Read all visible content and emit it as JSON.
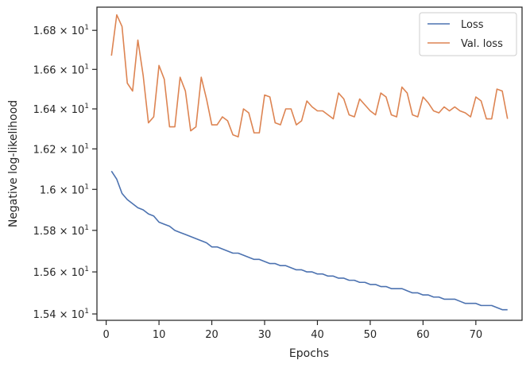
{
  "chart_data": {
    "type": "line",
    "xlabel": "Epochs",
    "ylabel": "Negative log-likelihood",
    "xlim": [
      -1.75,
      78.75
    ],
    "ylim": [
      15.37,
      16.92
    ],
    "y_scale": "log",
    "grid": false,
    "legend_position": "top-right",
    "x_ticks": [
      0,
      10,
      20,
      30,
      40,
      50,
      60,
      70
    ],
    "x_tick_labels": [
      "0",
      "10",
      "20",
      "30",
      "40",
      "50",
      "60",
      "70"
    ],
    "y_ticks": [
      15.4,
      15.6,
      15.8,
      16.0,
      16.2,
      16.4,
      16.6,
      16.8
    ],
    "y_tick_labels": [
      {
        "mant": "1.54",
        "exp": "1"
      },
      {
        "mant": "1.56",
        "exp": "1"
      },
      {
        "mant": "1.58",
        "exp": "1"
      },
      {
        "mant": "1.6",
        "exp": "1"
      },
      {
        "mant": "1.62",
        "exp": "1"
      },
      {
        "mant": "1.64",
        "exp": "1"
      },
      {
        "mant": "1.66",
        "exp": "1"
      },
      {
        "mant": "1.68",
        "exp": "1"
      }
    ],
    "x": [
      1,
      2,
      3,
      4,
      5,
      6,
      7,
      8,
      9,
      10,
      11,
      12,
      13,
      14,
      15,
      16,
      17,
      18,
      19,
      20,
      21,
      22,
      23,
      24,
      25,
      26,
      27,
      28,
      29,
      30,
      31,
      32,
      33,
      34,
      35,
      36,
      37,
      38,
      39,
      40,
      41,
      42,
      43,
      44,
      45,
      46,
      47,
      48,
      49,
      50,
      51,
      52,
      53,
      54,
      55,
      56,
      57,
      58,
      59,
      60,
      61,
      62,
      63,
      64,
      65,
      66,
      67,
      68,
      69,
      70,
      71,
      72,
      73,
      74,
      75,
      76
    ],
    "series": [
      {
        "name": "Loss",
        "color": "#4c72b0",
        "values": [
          16.09,
          16.05,
          15.98,
          15.95,
          15.93,
          15.91,
          15.9,
          15.88,
          15.87,
          15.84,
          15.83,
          15.82,
          15.8,
          15.79,
          15.78,
          15.77,
          15.76,
          15.75,
          15.74,
          15.72,
          15.72,
          15.71,
          15.7,
          15.69,
          15.69,
          15.68,
          15.67,
          15.66,
          15.66,
          15.65,
          15.64,
          15.64,
          15.63,
          15.63,
          15.62,
          15.61,
          15.61,
          15.6,
          15.6,
          15.59,
          15.59,
          15.58,
          15.58,
          15.57,
          15.57,
          15.56,
          15.56,
          15.55,
          15.55,
          15.54,
          15.54,
          15.53,
          15.53,
          15.52,
          15.52,
          15.52,
          15.51,
          15.5,
          15.5,
          15.49,
          15.49,
          15.48,
          15.48,
          15.47,
          15.47,
          15.47,
          15.46,
          15.45,
          15.45,
          15.45,
          15.44,
          15.44,
          15.44,
          15.43,
          15.42,
          15.42
        ]
      },
      {
        "name": "Val. loss",
        "color": "#dd8452",
        "values": [
          16.67,
          16.88,
          16.82,
          16.53,
          16.49,
          16.75,
          16.57,
          16.33,
          16.36,
          16.62,
          16.55,
          16.31,
          16.31,
          16.56,
          16.49,
          16.29,
          16.31,
          16.56,
          16.45,
          16.32,
          16.32,
          16.36,
          16.34,
          16.27,
          16.26,
          16.4,
          16.38,
          16.28,
          16.28,
          16.47,
          16.46,
          16.33,
          16.32,
          16.4,
          16.4,
          16.32,
          16.34,
          16.44,
          16.41,
          16.39,
          16.39,
          16.37,
          16.35,
          16.48,
          16.45,
          16.37,
          16.36,
          16.45,
          16.42,
          16.39,
          16.37,
          16.48,
          16.46,
          16.37,
          16.36,
          16.51,
          16.48,
          16.37,
          16.36,
          16.46,
          16.43,
          16.39,
          16.38,
          16.41,
          16.39,
          16.41,
          16.39,
          16.38,
          16.36,
          16.46,
          16.44,
          16.35,
          16.35,
          16.5,
          16.49,
          16.35
        ]
      }
    ]
  }
}
